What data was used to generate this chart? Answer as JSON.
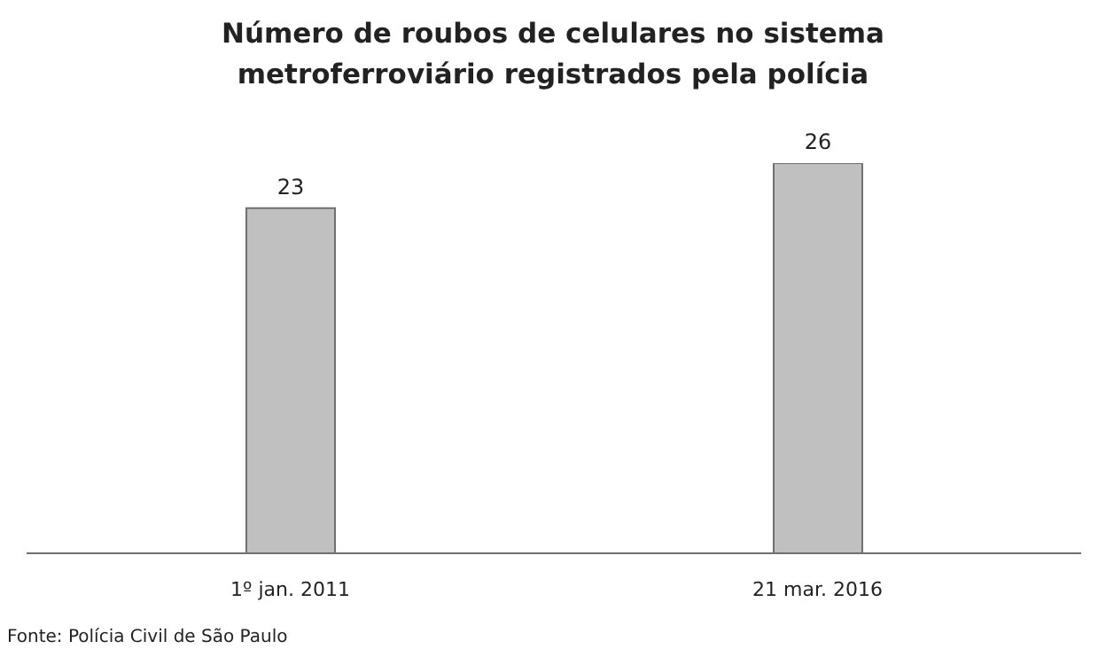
{
  "chart_data": {
    "type": "bar",
    "title": "Número de roubos de celulares no sistema metroferroviário registrados pela polícia",
    "categories": [
      "1º jan. 2011",
      "21 mar. 2016"
    ],
    "values": [
      23,
      26
    ],
    "color": "#c0c0c0",
    "data_labels": true,
    "tick_labels": "x",
    "annotations": [
      "Fonte: Polícia Civil de São Paulo"
    ]
  }
}
